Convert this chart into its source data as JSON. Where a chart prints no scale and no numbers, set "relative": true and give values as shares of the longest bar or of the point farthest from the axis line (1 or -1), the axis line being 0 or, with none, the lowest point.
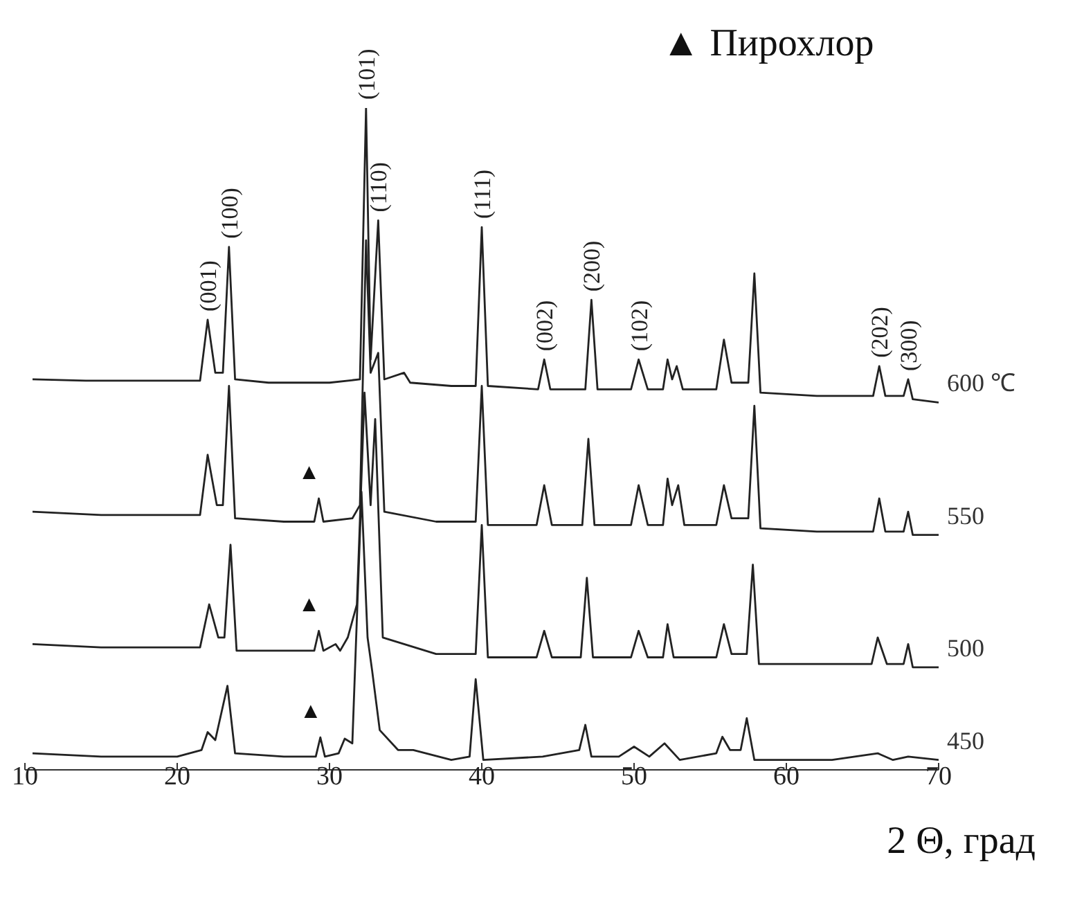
{
  "chart_data": {
    "type": "line",
    "relative": true,
    "xlabel": "2 Θ, град",
    "xlim": [
      10,
      70
    ],
    "xticks": [
      10,
      20,
      30,
      40,
      50,
      60,
      70
    ],
    "marker": "none",
    "line_style": "solid",
    "series": [
      {
        "name": "600 ℃",
        "color": "#222222",
        "x": [
          10.5,
          14,
          18,
          21.5,
          22.0,
          22.5,
          23.0,
          23.4,
          23.8,
          26,
          30,
          32.0,
          32.4,
          32.7,
          33.2,
          33.6,
          34.9,
          35.3,
          38,
          39.6,
          40.0,
          40.4,
          43.7,
          44.1,
          44.5,
          46.8,
          47.2,
          47.6,
          49.8,
          50.3,
          50.9,
          51.9,
          52.2,
          52.5,
          52.8,
          53.2,
          55.4,
          55.9,
          56.4,
          57.5,
          57.9,
          58.3,
          62,
          65.7,
          66.1,
          66.5,
          67.7,
          68.0,
          68.3,
          70
        ],
        "values": [
          0.59,
          0.588,
          0.588,
          0.588,
          0.68,
          0.6,
          0.6,
          0.79,
          0.59,
          0.585,
          0.585,
          0.59,
          1.0,
          0.62,
          0.83,
          0.59,
          0.6,
          0.585,
          0.58,
          0.58,
          0.82,
          0.58,
          0.575,
          0.62,
          0.575,
          0.575,
          0.71,
          0.575,
          0.575,
          0.62,
          0.575,
          0.575,
          0.62,
          0.59,
          0.61,
          0.575,
          0.575,
          0.65,
          0.585,
          0.585,
          0.75,
          0.57,
          0.565,
          0.565,
          0.61,
          0.565,
          0.565,
          0.59,
          0.56,
          0.555
        ]
      },
      {
        "name": "550",
        "color": "#222222",
        "x": [
          10.5,
          15,
          21.5,
          22.0,
          22.6,
          23.0,
          23.4,
          23.8,
          27,
          29.0,
          29.3,
          29.6,
          31.5,
          32.0,
          32.4,
          32.7,
          33.2,
          33.6,
          37,
          39.6,
          40.0,
          40.4,
          43.6,
          44.1,
          44.6,
          46.6,
          47.0,
          47.4,
          49.8,
          50.3,
          50.9,
          51.9,
          52.2,
          52.5,
          52.9,
          53.3,
          55.4,
          55.9,
          56.4,
          57.5,
          57.9,
          58.3,
          62,
          65.7,
          66.1,
          66.5,
          67.7,
          68.0,
          68.3,
          70
        ],
        "values": [
          0.39,
          0.385,
          0.385,
          0.476,
          0.4,
          0.4,
          0.58,
          0.38,
          0.375,
          0.375,
          0.41,
          0.375,
          0.38,
          0.4,
          0.8,
          0.6,
          0.63,
          0.39,
          0.375,
          0.375,
          0.58,
          0.37,
          0.37,
          0.43,
          0.37,
          0.37,
          0.5,
          0.37,
          0.37,
          0.43,
          0.37,
          0.37,
          0.44,
          0.4,
          0.43,
          0.37,
          0.37,
          0.43,
          0.38,
          0.38,
          0.55,
          0.365,
          0.36,
          0.36,
          0.41,
          0.36,
          0.36,
          0.39,
          0.355,
          0.355
        ]
      },
      {
        "name": "500",
        "color": "#222222",
        "x": [
          10.5,
          15,
          21.5,
          22.1,
          22.7,
          23.1,
          23.5,
          23.9,
          27,
          29.0,
          29.3,
          29.6,
          30.4,
          30.7,
          31.2,
          31.8,
          32.3,
          32.7,
          33.0,
          33.5,
          37,
          39.6,
          40.0,
          40.4,
          43.6,
          44.1,
          44.6,
          46.5,
          46.9,
          47.3,
          49.8,
          50.3,
          50.9,
          51.9,
          52.2,
          52.6,
          55.4,
          55.9,
          56.4,
          57.4,
          57.8,
          58.2,
          62,
          65.6,
          66.0,
          66.6,
          67.7,
          68.0,
          68.3,
          70
        ],
        "values": [
          0.19,
          0.185,
          0.185,
          0.25,
          0.2,
          0.2,
          0.34,
          0.18,
          0.18,
          0.18,
          0.21,
          0.18,
          0.19,
          0.18,
          0.2,
          0.25,
          0.57,
          0.4,
          0.53,
          0.2,
          0.175,
          0.175,
          0.37,
          0.17,
          0.17,
          0.21,
          0.17,
          0.17,
          0.29,
          0.17,
          0.17,
          0.21,
          0.17,
          0.17,
          0.22,
          0.17,
          0.17,
          0.22,
          0.175,
          0.175,
          0.31,
          0.16,
          0.16,
          0.16,
          0.2,
          0.16,
          0.16,
          0.19,
          0.155,
          0.155
        ]
      },
      {
        "name": "450",
        "color": "#222222",
        "x": [
          10.5,
          15,
          20,
          21.6,
          22.0,
          22.5,
          23.3,
          23.8,
          27,
          29.1,
          29.4,
          29.7,
          30.6,
          31.0,
          31.5,
          32.1,
          32.5,
          32.8,
          33.3,
          34.5,
          35.5,
          38,
          39.2,
          39.6,
          40.1,
          44,
          46.4,
          46.8,
          47.2,
          49,
          50,
          51,
          52.0,
          53,
          55.4,
          55.8,
          56.3,
          57.0,
          57.4,
          57.9,
          60,
          63,
          66,
          67,
          68,
          70
        ],
        "values": [
          0.025,
          0.02,
          0.02,
          0.03,
          0.057,
          0.045,
          0.127,
          0.025,
          0.02,
          0.02,
          0.049,
          0.02,
          0.025,
          0.047,
          0.04,
          0.42,
          0.2,
          0.15,
          0.06,
          0.03,
          0.03,
          0.015,
          0.02,
          0.137,
          0.015,
          0.02,
          0.03,
          0.068,
          0.02,
          0.02,
          0.035,
          0.02,
          0.04,
          0.015,
          0.025,
          0.05,
          0.03,
          0.03,
          0.078,
          0.015,
          0.015,
          0.015,
          0.025,
          0.015,
          0.02,
          0.015
        ]
      }
    ],
    "annotations": [
      "▲ Пирохлор",
      {
        "text": "(001)",
        "x": 22.0,
        "y": 0.68
      },
      {
        "text": "(100)",
        "x": 23.4,
        "y": 0.79
      },
      {
        "text": "(101)",
        "x": 32.4,
        "y": 1.0
      },
      {
        "text": "(110)",
        "x": 33.2,
        "y": 0.83
      },
      {
        "text": "(111)",
        "x": 40.0,
        "y": 0.82
      },
      {
        "text": "(002)",
        "x": 44.1,
        "y": 0.62
      },
      {
        "text": "(200)",
        "x": 47.2,
        "y": 0.71
      },
      {
        "text": "(102)",
        "x": 50.3,
        "y": 0.62
      },
      {
        "text": "(202)",
        "x": 66.1,
        "y": 0.61
      },
      {
        "text": "(300)",
        "x": 68.0,
        "y": 0.59
      },
      {
        "text": "▲",
        "x": 29.3,
        "y": 0.41
      },
      {
        "text": "▲",
        "x": 29.3,
        "y": 0.21
      },
      {
        "text": "▲",
        "x": 29.4,
        "y": 0.049
      }
    ]
  }
}
